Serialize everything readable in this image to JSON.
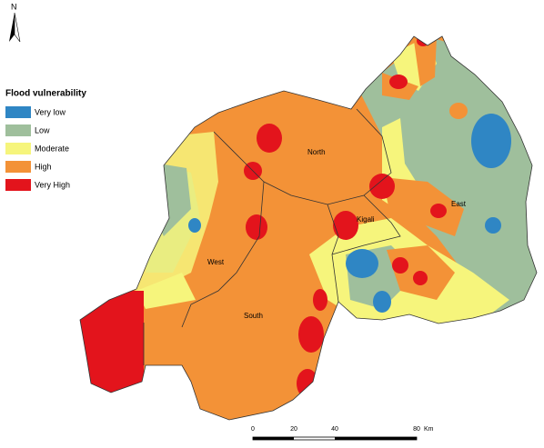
{
  "north_arrow": {
    "label": "N"
  },
  "legend": {
    "title": "Flood vulnerability",
    "items": [
      {
        "label": "Very low",
        "color": "#2f86c4"
      },
      {
        "label": "Low",
        "color": "#9fbf9c"
      },
      {
        "label": "Moderate",
        "color": "#f6f57c"
      },
      {
        "label": "High",
        "color": "#f39237"
      },
      {
        "label": "Very High",
        "color": "#e3141c"
      }
    ]
  },
  "regions": [
    "North",
    "West",
    "South",
    "Kigali",
    "East"
  ],
  "scale_bar": {
    "labels": [
      "0",
      "20",
      "40",
      "80"
    ],
    "unit": "Km"
  }
}
